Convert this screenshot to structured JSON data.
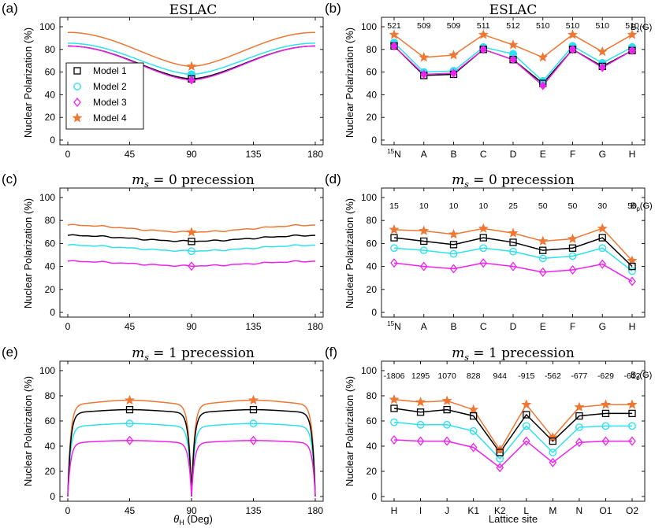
{
  "colors": {
    "model1": "#000000",
    "model2": "#2fe0f0",
    "model3": "#ee22ee",
    "model4": "#ee7733"
  },
  "legend": [
    "Model 1",
    "Model 2",
    "Model 3",
    "Model 4"
  ],
  "ylabel": "Nuclear Polarization (%)",
  "xlabel_theta": "θH (Deg)",
  "xlabel_theta_main": "θ",
  "xlabel_theta_sub": "H",
  "xlabel_theta_unit": " (Deg)",
  "xlabel_site": "Lattice site",
  "chart_data": [
    {
      "label": "(a)",
      "title": "ESLAC",
      "type": "line",
      "ylim": [
        0,
        100
      ],
      "yticks": [
        "0",
        "20",
        "40",
        "60",
        "80",
        "100"
      ],
      "xlim": [
        0,
        180
      ],
      "xticks": [
        "0",
        "45",
        "90",
        "135",
        "180"
      ],
      "series": [
        {
          "name": "Model 1",
          "marker_x": [
            90
          ],
          "max": 83,
          "min": 54
        },
        {
          "name": "Model 2",
          "marker_x": [
            90
          ],
          "max": 85.5,
          "min": 58
        },
        {
          "name": "Model 3",
          "marker_x": [
            90
          ],
          "max": 83,
          "min": 53
        },
        {
          "name": "Model 4",
          "marker_x": [
            90
          ],
          "max": 95,
          "min": 65
        }
      ]
    },
    {
      "label": "(b)",
      "title": "ESLAC",
      "type": "line",
      "ylim": [
        0,
        100
      ],
      "yticks": [
        "0",
        "20",
        "40",
        "60",
        "80",
        "100"
      ],
      "categories": [
        "15N",
        "A",
        "B",
        "C",
        "D",
        "E",
        "F",
        "G",
        "H"
      ],
      "annotations": [
        "521",
        "509",
        "509",
        "511",
        "512",
        "510",
        "510",
        "510",
        "510"
      ],
      "field_label": "Bz(G)",
      "field_main": "B",
      "field_sub": "z",
      "field_unit": "(G)",
      "series": [
        {
          "name": "Model 1",
          "values": [
            83,
            57,
            58,
            80,
            71,
            50,
            80,
            65,
            79
          ]
        },
        {
          "name": "Model 2",
          "values": [
            86,
            60,
            61,
            82,
            76,
            52,
            83,
            68,
            82
          ]
        },
        {
          "name": "Model 3",
          "values": [
            83,
            58,
            59,
            80,
            71,
            48,
            80,
            64,
            79
          ]
        },
        {
          "name": "Model 4",
          "values": [
            93,
            73,
            75,
            93,
            84,
            73,
            93,
            78,
            93
          ]
        }
      ]
    },
    {
      "label": "(c)",
      "title_main": "m",
      "title_sub": "s",
      "title_rest": " = 0 precession",
      "type": "line",
      "ylim": [
        0,
        100
      ],
      "yticks": [
        "0",
        "20",
        "40",
        "60",
        "80",
        "100"
      ],
      "xlim": [
        0,
        180
      ],
      "xticks": [
        "0",
        "45",
        "90",
        "135",
        "180"
      ],
      "series": [
        {
          "name": "Model 1",
          "marker_x": [
            90
          ],
          "peak": 67,
          "dip": 62
        },
        {
          "name": "Model 2",
          "marker_x": [
            90
          ],
          "peak": 58.5,
          "dip": 53.5
        },
        {
          "name": "Model 3",
          "marker_x": [
            90
          ],
          "peak": 44.5,
          "dip": 40.5
        },
        {
          "name": "Model 4",
          "marker_x": [
            90
          ],
          "peak": 76,
          "dip": 70
        }
      ]
    },
    {
      "label": "(d)",
      "title_main": "m",
      "title_sub": "s",
      "title_rest": " = 0 precession",
      "type": "line",
      "ylim": [
        0,
        100
      ],
      "yticks": [
        "0",
        "20",
        "40",
        "60",
        "80",
        "100"
      ],
      "categories": [
        "15N",
        "A",
        "B",
        "C",
        "D",
        "E",
        "F",
        "G",
        "H"
      ],
      "annotations": [
        "15",
        "10",
        "10",
        "10",
        "25",
        "50",
        "50",
        "30",
        "50"
      ],
      "field_label": "Bp(G)",
      "field_main": "B",
      "field_sub": "p",
      "field_unit": "(G)",
      "series": [
        {
          "name": "Model 1",
          "values": [
            65,
            62,
            59,
            65,
            61,
            54,
            56,
            65,
            40
          ]
        },
        {
          "name": "Model 2",
          "values": [
            56,
            54,
            51,
            56,
            53,
            47,
            49,
            56,
            36
          ]
        },
        {
          "name": "Model 3",
          "values": [
            43,
            40,
            38,
            43,
            40,
            35,
            37,
            42,
            27
          ]
        },
        {
          "name": "Model 4",
          "values": [
            72,
            71,
            68,
            73,
            69,
            62,
            64,
            73,
            45
          ]
        }
      ]
    },
    {
      "label": "(e)",
      "title_main": "m",
      "title_sub": "s",
      "title_rest": " = 1 precession",
      "type": "line",
      "ylim": [
        0,
        100
      ],
      "yticks": [
        "0",
        "20",
        "40",
        "60",
        "80",
        "100"
      ],
      "xlim": [
        0,
        180
      ],
      "xticks": [
        "0",
        "45",
        "90",
        "135",
        "180"
      ],
      "series": [
        {
          "name": "Model 1",
          "marker_x": [
            45,
            135
          ],
          "plateau": 69,
          "center": 67
        },
        {
          "name": "Model 2",
          "marker_x": [
            45,
            135
          ],
          "plateau": 58,
          "center": 56
        },
        {
          "name": "Model 3",
          "marker_x": [
            45,
            135
          ],
          "plateau": 44.5,
          "center": 43
        },
        {
          "name": "Model 4",
          "marker_x": [
            45,
            135
          ],
          "plateau": 76.5,
          "center": 73.5
        }
      ]
    },
    {
      "label": "(f)",
      "title_main": "m",
      "title_sub": "s",
      "title_rest": " = 1 precession",
      "type": "line",
      "ylim": [
        0,
        100
      ],
      "yticks": [
        "0",
        "20",
        "40",
        "60",
        "80",
        "100"
      ],
      "categories": [
        "H",
        "I",
        "J",
        "K1",
        "K2",
        "L",
        "M",
        "N",
        "O1",
        "O2"
      ],
      "annotations": [
        "-1806",
        "1295",
        "1070",
        "828",
        "944",
        "-915",
        "-562",
        "-677",
        "-629",
        "-612"
      ],
      "field_label": "Bz(G)",
      "field_main": "B",
      "field_sub": "z",
      "field_unit": "(G)",
      "series": [
        {
          "name": "Model 1",
          "values": [
            70,
            67,
            69,
            64,
            35,
            65,
            44,
            64,
            66,
            66
          ]
        },
        {
          "name": "Model 2",
          "values": [
            59,
            57,
            57,
            52,
            30,
            56,
            35,
            55,
            56,
            56
          ]
        },
        {
          "name": "Model 3",
          "values": [
            45,
            44,
            44,
            39,
            23,
            44,
            27,
            43,
            44,
            44
          ]
        },
        {
          "name": "Model 4",
          "values": [
            77,
            75,
            76,
            69,
            37,
            73,
            47,
            71,
            73,
            73
          ]
        }
      ]
    }
  ]
}
